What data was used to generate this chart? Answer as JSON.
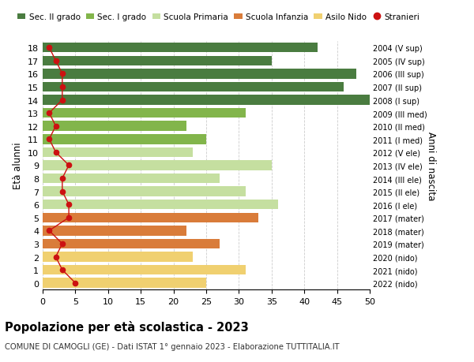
{
  "ages": [
    18,
    17,
    16,
    15,
    14,
    13,
    12,
    11,
    10,
    9,
    8,
    7,
    6,
    5,
    4,
    3,
    2,
    1,
    0
  ],
  "values": [
    42,
    35,
    48,
    46,
    50,
    31,
    22,
    25,
    23,
    35,
    27,
    31,
    36,
    33,
    22,
    27,
    23,
    31,
    25
  ],
  "stranieri": [
    1,
    2,
    3,
    3,
    3,
    1,
    2,
    1,
    2,
    4,
    3,
    3,
    4,
    4,
    1,
    3,
    2,
    3,
    5
  ],
  "right_labels": [
    "2004 (V sup)",
    "2005 (IV sup)",
    "2006 (III sup)",
    "2007 (II sup)",
    "2008 (I sup)",
    "2009 (III med)",
    "2010 (II med)",
    "2011 (I med)",
    "2012 (V ele)",
    "2013 (IV ele)",
    "2014 (III ele)",
    "2015 (II ele)",
    "2016 (I ele)",
    "2017 (mater)",
    "2018 (mater)",
    "2019 (mater)",
    "2020 (nido)",
    "2021 (nido)",
    "2022 (nido)"
  ],
  "bar_colors": [
    "#4a7c40",
    "#4a7c40",
    "#4a7c40",
    "#4a7c40",
    "#4a7c40",
    "#82b54b",
    "#82b54b",
    "#82b54b",
    "#c5dfa0",
    "#c5dfa0",
    "#c5dfa0",
    "#c5dfa0",
    "#c5dfa0",
    "#d97c3a",
    "#d97c3a",
    "#d97c3a",
    "#f0d070",
    "#f0d070",
    "#f0d070"
  ],
  "legend_labels": [
    "Sec. II grado",
    "Sec. I grado",
    "Scuola Primaria",
    "Scuola Infanzia",
    "Asilo Nido",
    "Stranieri"
  ],
  "legend_colors": [
    "#4a7c40",
    "#82b54b",
    "#c5dfa0",
    "#d97c3a",
    "#f0d070",
    "#cc1111"
  ],
  "stranieri_color": "#cc1111",
  "title": "Popolazione per età scolastica - 2023",
  "subtitle": "COMUNE DI CAMOGLI (GE) - Dati ISTAT 1° gennaio 2023 - Elaborazione TUTTITALIA.IT",
  "ylabel": "Età alunni",
  "right_ylabel": "Anni di nascita",
  "xlim": [
    0,
    50
  ],
  "xticks": [
    0,
    5,
    10,
    15,
    20,
    25,
    30,
    35,
    40,
    45,
    50
  ],
  "background_color": "#ffffff",
  "grid_color": "#cccccc"
}
